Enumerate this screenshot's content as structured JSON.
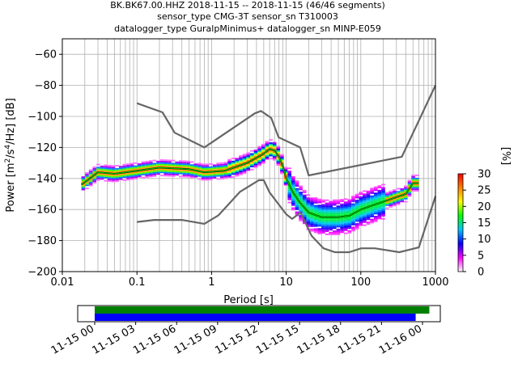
{
  "title": {
    "line1": "BK.BK67.00.HHZ   2018-11-15 -- 2018-11-15  (46/46 segments)",
    "line2": "sensor_type CMG-3T sensor_sn T310003",
    "line3": "datalogger_type GuralpMinimus+ datalogger_sn MINP-E059"
  },
  "chart_data": [
    {
      "type": "heatmap",
      "subtype": "ppsd",
      "xscale": "log",
      "xlabel": "Period [s]",
      "ylabel": "Power [m²/s⁴/Hz] [dB]",
      "xlim": [
        0.01,
        1000
      ],
      "ylim": [
        -200,
        -50
      ],
      "xticks": [
        0.01,
        0.1,
        1,
        10,
        100,
        1000
      ],
      "xtick_labels": [
        "0.01",
        "0.1",
        "1",
        "10",
        "100",
        "1000"
      ],
      "yticks": [
        -200,
        -180,
        -160,
        -140,
        -120,
        -100,
        -80,
        -60
      ],
      "ytick_labels": [
        "−200",
        "−180",
        "−160",
        "−140",
        "−120",
        "−100",
        "−80",
        "−60"
      ],
      "grid": true,
      "colorbar": {
        "label": "[%]",
        "range": [
          0,
          30
        ],
        "ticks": [
          "0",
          "5",
          "10",
          "15",
          "20",
          "25",
          "30"
        ],
        "colors": [
          "#ffffff",
          "#ff00ff",
          "#0000ff",
          "#00c8ff",
          "#00ff00",
          "#ffff00",
          "#ff8000",
          "#ff0000"
        ]
      },
      "series": [
        {
          "role": "mean",
          "color": "#000000",
          "x": [
            0.018,
            0.022,
            0.03,
            0.05,
            0.1,
            0.2,
            0.5,
            0.8,
            1.5,
            3,
            5,
            6,
            7,
            8,
            9,
            10,
            12,
            15,
            20,
            30,
            50,
            70,
            100,
            150,
            200,
            300,
            400,
            500,
            600
          ],
          "y": [
            -144,
            -141,
            -136,
            -137,
            -135,
            -133,
            -134,
            -136,
            -135,
            -130,
            -124,
            -121,
            -122,
            -126,
            -132,
            -140,
            -148,
            -155,
            -162,
            -165,
            -165,
            -164,
            -160,
            -157,
            -155,
            -152,
            -150,
            -143,
            -143
          ]
        },
        {
          "role": "mode",
          "color": "#00c800",
          "x": [
            0.018,
            0.022,
            0.03,
            0.05,
            0.1,
            0.2,
            0.5,
            0.8,
            1.5,
            3,
            5,
            6,
            7,
            8,
            9,
            10,
            12,
            15,
            20,
            30,
            50,
            70,
            100,
            150,
            200,
            300,
            400,
            500,
            600
          ],
          "y": [
            -144,
            -141,
            -136,
            -137,
            -135,
            -133,
            -134,
            -136,
            -135,
            -130,
            -124,
            -121,
            -122,
            -126,
            -132,
            -140,
            -148,
            -155,
            -162,
            -165,
            -165,
            -164,
            -160,
            -157,
            -155,
            -152,
            -150,
            -143,
            -143
          ]
        },
        {
          "role": "new_high_noise_model",
          "color": "#666666",
          "x": [
            0.1,
            0.22,
            0.32,
            0.8,
            3.8,
            4.6,
            6.3,
            7.9,
            15.4,
            20,
            354.8,
            10000
          ],
          "y": [
            -91.5,
            -97.4,
            -110.5,
            -120,
            -98,
            -96.5,
            -101,
            -113.5,
            -120,
            -138,
            -126,
            -80
          ]
        },
        {
          "role": "new_low_noise_model",
          "color": "#666666",
          "x": [
            0.1,
            0.17,
            0.4,
            0.8,
            1.24,
            2.4,
            4.3,
            5,
            6,
            10,
            12,
            15.6,
            21.9,
            31.6,
            45,
            70,
            101,
            154,
            328,
            600,
            10000
          ],
          "y": [
            -168,
            -166.7,
            -166.7,
            -169.2,
            -163.7,
            -148.6,
            -141.1,
            -141.1,
            -149,
            -163,
            -166,
            -162,
            -177,
            -185,
            -187.5,
            -187.5,
            -185,
            -185,
            -187.5,
            -184.4,
            -151.5
          ]
        }
      ]
    },
    {
      "type": "timeline",
      "tick_labels": [
        "11-15 00",
        "11-15 03",
        "11-15 06",
        "11-15 09",
        "11-15 12",
        "11-15 15",
        "11-15 18",
        "11-15 21",
        "11-16 00"
      ],
      "bars": [
        {
          "role": "data_available",
          "color": "#008000",
          "start": "11-15 00:00",
          "end": "11-16 00:30"
        },
        {
          "role": "psd_segments_used",
          "color": "#0000ff",
          "start": "11-15 00:00",
          "end": "11-15 23:30"
        }
      ]
    }
  ]
}
